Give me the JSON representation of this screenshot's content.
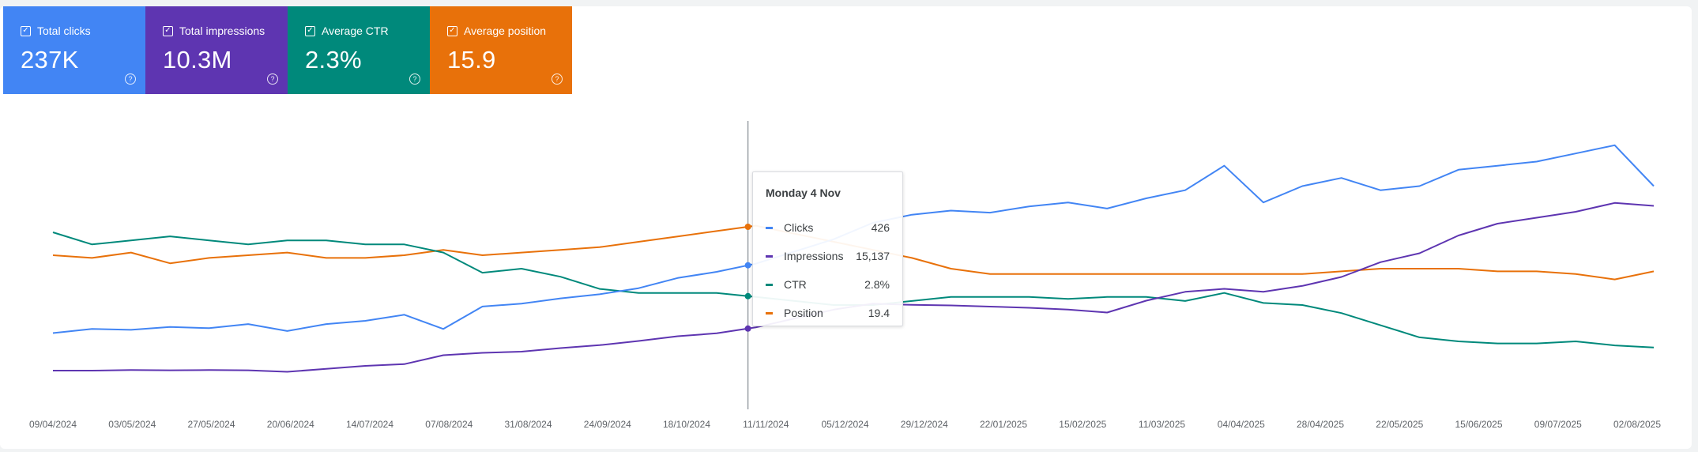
{
  "cards": [
    {
      "title": "Total clicks",
      "value": "237K",
      "color": "#4285f4"
    },
    {
      "title": "Total impressions",
      "value": "10.3M",
      "color": "#5e35b1"
    },
    {
      "title": "Average CTR",
      "value": "2.3%",
      "color": "#00897b"
    },
    {
      "title": "Average position",
      "value": "15.9",
      "color": "#e8710a"
    }
  ],
  "tooltip": {
    "date": "Monday 4 Nov",
    "rows": [
      {
        "label": "Clicks",
        "value": "426",
        "color": "#4285f4"
      },
      {
        "label": "Impressions",
        "value": "15,137",
        "color": "#5e35b1"
      },
      {
        "label": "CTR",
        "value": "2.8%",
        "color": "#00897b"
      },
      {
        "label": "Position",
        "value": "19.4",
        "color": "#e8710a"
      }
    ]
  },
  "chart_data": {
    "type": "line",
    "title": "",
    "xlabel": "",
    "ylabel": "",
    "grid": false,
    "legend": "none",
    "x_ticks": [
      "09/04/2024",
      "03/05/2024",
      "27/05/2024",
      "20/06/2024",
      "14/07/2024",
      "07/08/2024",
      "31/08/2024",
      "24/09/2024",
      "18/10/2024",
      "11/11/2024",
      "05/12/2024",
      "29/12/2024",
      "22/01/2025",
      "15/02/2025",
      "11/03/2025",
      "04/04/2025",
      "28/04/2025",
      "22/05/2025",
      "15/06/2025",
      "09/07/2025",
      "02/08/2025"
    ],
    "x": [
      "09/04/2024",
      "21/04/2024",
      "03/05/2024",
      "15/05/2024",
      "27/05/2024",
      "08/06/2024",
      "20/06/2024",
      "02/07/2024",
      "14/07/2024",
      "26/07/2024",
      "07/08/2024",
      "19/08/2024",
      "31/08/2024",
      "12/09/2024",
      "24/09/2024",
      "06/10/2024",
      "18/10/2024",
      "30/10/2024",
      "11/11/2024",
      "23/11/2024",
      "05/12/2024",
      "17/12/2024",
      "29/12/2024",
      "10/01/2025",
      "22/01/2025",
      "03/02/2025",
      "15/02/2025",
      "27/02/2025",
      "11/03/2025",
      "23/03/2025",
      "04/04/2025",
      "16/04/2025",
      "28/04/2025",
      "10/05/2025",
      "22/05/2025",
      "03/06/2025",
      "15/06/2025",
      "27/06/2025",
      "09/07/2025",
      "21/07/2025",
      "02/08/2025",
      "06/08/2025"
    ],
    "series": [
      {
        "name": "Clicks",
        "color": "#4285f4",
        "axis": "clicks",
        "values": [
          240,
          250,
          248,
          255,
          252,
          262,
          245,
          262,
          270,
          285,
          250,
          305,
          312,
          325,
          335,
          350,
          375,
          390,
          410,
          440,
          470,
          510,
          530,
          540,
          535,
          550,
          560,
          545,
          570,
          590,
          650,
          560,
          600,
          620,
          590,
          600,
          640,
          650,
          660,
          680,
          700,
          600
        ]
      },
      {
        "name": "Impressions",
        "color": "#5e35b1",
        "axis": "impressions",
        "values": [
          5200,
          5200,
          5300,
          5250,
          5300,
          5250,
          5000,
          5500,
          6000,
          6300,
          7800,
          8200,
          8400,
          9000,
          9500,
          10200,
          11000,
          11500,
          12500,
          14000,
          15500,
          16500,
          16300,
          16200,
          16000,
          15800,
          15500,
          15000,
          17000,
          18500,
          19000,
          18500,
          19500,
          21000,
          23500,
          25000,
          28000,
          30000,
          31000,
          32000,
          33500,
          33000
        ]
      },
      {
        "name": "CTR",
        "color": "#00897b",
        "axis": "ctr",
        "values": [
          4.6,
          4.3,
          4.4,
          4.5,
          4.4,
          4.3,
          4.4,
          4.4,
          4.3,
          4.3,
          4.1,
          3.6,
          3.7,
          3.5,
          3.2,
          3.1,
          3.1,
          3.1,
          3.0,
          2.9,
          2.8,
          2.8,
          2.9,
          3.0,
          3.0,
          3.0,
          2.95,
          3.0,
          3.0,
          2.9,
          3.1,
          2.85,
          2.8,
          2.6,
          2.3,
          2.0,
          1.9,
          1.85,
          1.85,
          1.9,
          1.8,
          1.75
        ]
      },
      {
        "name": "Position",
        "color": "#e8710a",
        "axis": "position",
        "values": [
          11.5,
          11.4,
          11.6,
          11.2,
          11.4,
          11.5,
          11.6,
          11.4,
          11.4,
          11.5,
          11.7,
          11.5,
          11.6,
          11.7,
          11.8,
          12.0,
          12.2,
          12.4,
          12.6,
          12.3,
          12.0,
          11.7,
          11.4,
          11.0,
          10.8,
          10.8,
          10.8,
          10.8,
          10.8,
          10.8,
          10.8,
          10.8,
          10.8,
          10.9,
          11.0,
          11.0,
          11.0,
          10.9,
          10.9,
          10.8,
          10.6,
          10.9
        ]
      }
    ]
  }
}
